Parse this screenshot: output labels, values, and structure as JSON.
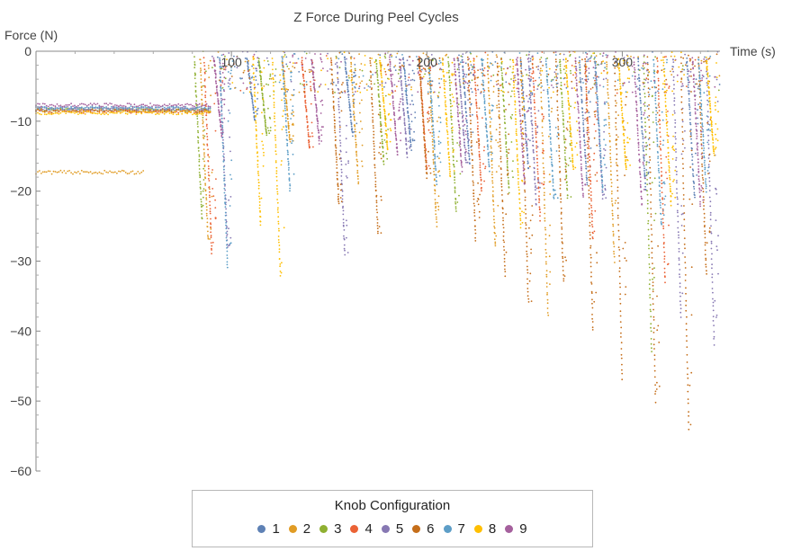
{
  "chart_data": {
    "type": "scatter",
    "title": "Z Force During Peel Cycles",
    "xlabel": "Time (s)",
    "ylabel": "Force (N)",
    "xlim": [
      0,
      350
    ],
    "ylim": [
      -60,
      0
    ],
    "x_ticks": [
      100,
      200,
      300
    ],
    "x_tick_labels": [
      "100",
      "200",
      "300"
    ],
    "y_ticks": [
      0,
      -10,
      -20,
      -30,
      -40,
      -50,
      -60
    ],
    "y_tick_labels": [
      "0",
      "−10",
      "−20",
      "−30",
      "−40",
      "−50",
      "−60"
    ],
    "legend": {
      "title": "Knob Configuration",
      "position": "bottom-center"
    },
    "series": [
      {
        "name": "1",
        "color": "#5e81b5",
        "baseline": -8.3,
        "baseline_end": 90,
        "peaks": [
          [
            112,
            -10
          ],
          [
            162,
            -12
          ],
          [
            192,
            -14
          ],
          [
            222,
            -16
          ],
          [
            252,
            -17
          ],
          [
            282,
            -19
          ],
          [
            312,
            -20
          ],
          [
            337,
            -21
          ]
        ]
      },
      {
        "name": "2",
        "color": "#e19c24",
        "baseline": -17.3,
        "baseline_end": 55,
        "peaks": [
          [
            88,
            -27
          ],
          [
            130,
            -13
          ],
          [
            165,
            -19
          ],
          [
            205,
            -25
          ],
          [
            235,
            -28
          ],
          [
            262,
            -38
          ],
          [
            296,
            -30
          ]
        ]
      },
      {
        "name": "3",
        "color": "#8fb032",
        "baseline": -8.4,
        "baseline_end": 90,
        "peaks": [
          [
            85,
            -24
          ],
          [
            118,
            -12
          ],
          [
            178,
            -16
          ],
          [
            215,
            -23
          ],
          [
            242,
            -20
          ],
          [
            272,
            -21
          ],
          [
            315,
            -43
          ]
        ]
      },
      {
        "name": "4",
        "color": "#eb6235",
        "baseline": -8.6,
        "baseline_end": 90,
        "peaks": [
          [
            90,
            -29
          ],
          [
            140,
            -14
          ],
          [
            200,
            -17
          ],
          [
            228,
            -20
          ],
          [
            258,
            -24
          ],
          [
            285,
            -27
          ],
          [
            322,
            -33
          ]
        ]
      },
      {
        "name": "5",
        "color": "#8778b3",
        "baseline": -8.2,
        "baseline_end": 90,
        "peaks": [
          [
            98,
            -28
          ],
          [
            158,
            -29
          ],
          [
            190,
            -15
          ],
          [
            220,
            -16
          ],
          [
            256,
            -22
          ],
          [
            290,
            -21
          ],
          [
            330,
            -38
          ],
          [
            347,
            -42
          ]
        ]
      },
      {
        "name": "6",
        "color": "#c56e1a",
        "baseline": -8.5,
        "baseline_end": 90,
        "peaks": [
          [
            155,
            -22
          ],
          [
            175,
            -26
          ],
          [
            200,
            -18
          ],
          [
            225,
            -27
          ],
          [
            240,
            -32
          ],
          [
            252,
            -36
          ],
          [
            270,
            -33
          ],
          [
            285,
            -40
          ],
          [
            300,
            -47
          ],
          [
            317,
            -50
          ],
          [
            334,
            -54
          ],
          [
            343,
            -32
          ]
        ]
      },
      {
        "name": "7",
        "color": "#5d9ec7",
        "baseline": -8.1,
        "baseline_end": 90,
        "peaks": [
          [
            98,
            -31
          ],
          [
            130,
            -20
          ],
          [
            205,
            -19
          ],
          [
            232,
            -17
          ],
          [
            265,
            -21
          ],
          [
            290,
            -20
          ],
          [
            320,
            -25
          ],
          [
            343,
            -20
          ]
        ]
      },
      {
        "name": "8",
        "color": "#ffbf00",
        "baseline": -8.8,
        "baseline_end": 90,
        "peaks": [
          [
            115,
            -25
          ],
          [
            125,
            -32
          ],
          [
            180,
            -14
          ],
          [
            212,
            -18
          ],
          [
            248,
            -25
          ],
          [
            275,
            -17
          ],
          [
            302,
            -17
          ],
          [
            325,
            -22
          ],
          [
            347,
            -15
          ]
        ]
      },
      {
        "name": "9",
        "color": "#a5609d",
        "baseline": -7.7,
        "baseline_end": 90,
        "peaks": [
          [
            95,
            -12
          ],
          [
            145,
            -13
          ],
          [
            185,
            -15
          ],
          [
            218,
            -17
          ],
          [
            250,
            -19
          ],
          [
            280,
            -21
          ],
          [
            310,
            -22
          ],
          [
            340,
            -22
          ]
        ]
      }
    ]
  }
}
